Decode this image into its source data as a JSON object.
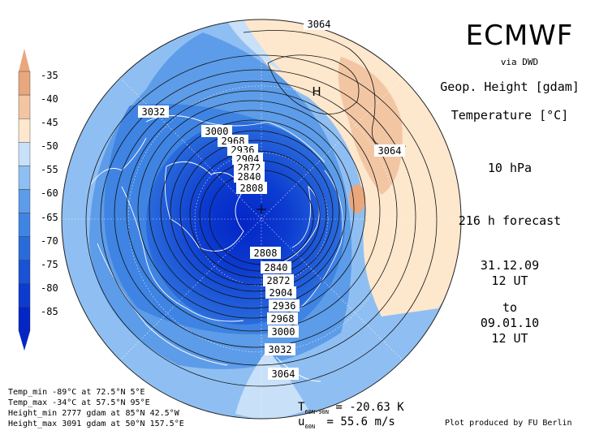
{
  "header": {
    "title": "ECMWF",
    "via": "via DWD",
    "field1": "Geop. Height [gdam]",
    "field2": "Temperature [°C]",
    "level": "10 hPa",
    "forecast": "216 h forecast",
    "init_date": "31.12.09",
    "init_time": "12 UT",
    "to": "to",
    "valid_date": "09.01.10",
    "valid_time": "12 UT"
  },
  "legend": {
    "labels": [
      "-35",
      "-40",
      "-45",
      "-50",
      "-55",
      "-60",
      "-65",
      "-70",
      "-75",
      "-80",
      "-85"
    ],
    "colors": [
      "#e9a77e",
      "#f3c6a3",
      "#fde7cd",
      "#c8e0f8",
      "#8fbff2",
      "#5d9ce8",
      "#3f84e3",
      "#2a6bdc",
      "#1a52d6",
      "#0c3bd0",
      "#0426c6"
    ]
  },
  "contours": {
    "labels": [
      "3064",
      "3032",
      "3000",
      "2968",
      "2936",
      "2904",
      "2872",
      "2840",
      "2808",
      "3064",
      "2808",
      "2840",
      "2872",
      "2904",
      "2936",
      "2968",
      "3000",
      "3032",
      "3064"
    ]
  },
  "markers": {
    "high": "H"
  },
  "stats": {
    "temp_min": "Temp_min -89°C at 72.5°N 5°E",
    "temp_max": "Temp_max -34°C at 57.5°N 95°E",
    "height_min": "Height_min 2777 gdam at 85°N 42.5°W",
    "height_max": "Height_max 3091 gdam at 50°N 157.5°E"
  },
  "bottom": {
    "t_label": "T",
    "t_sub": "60N-90N",
    "t_value": "= -20.63 K",
    "u_label": "u",
    "u_sub": "60N",
    "u_value": "= 55.6 m/s",
    "credit": "Plot produced by FU Berlin"
  }
}
